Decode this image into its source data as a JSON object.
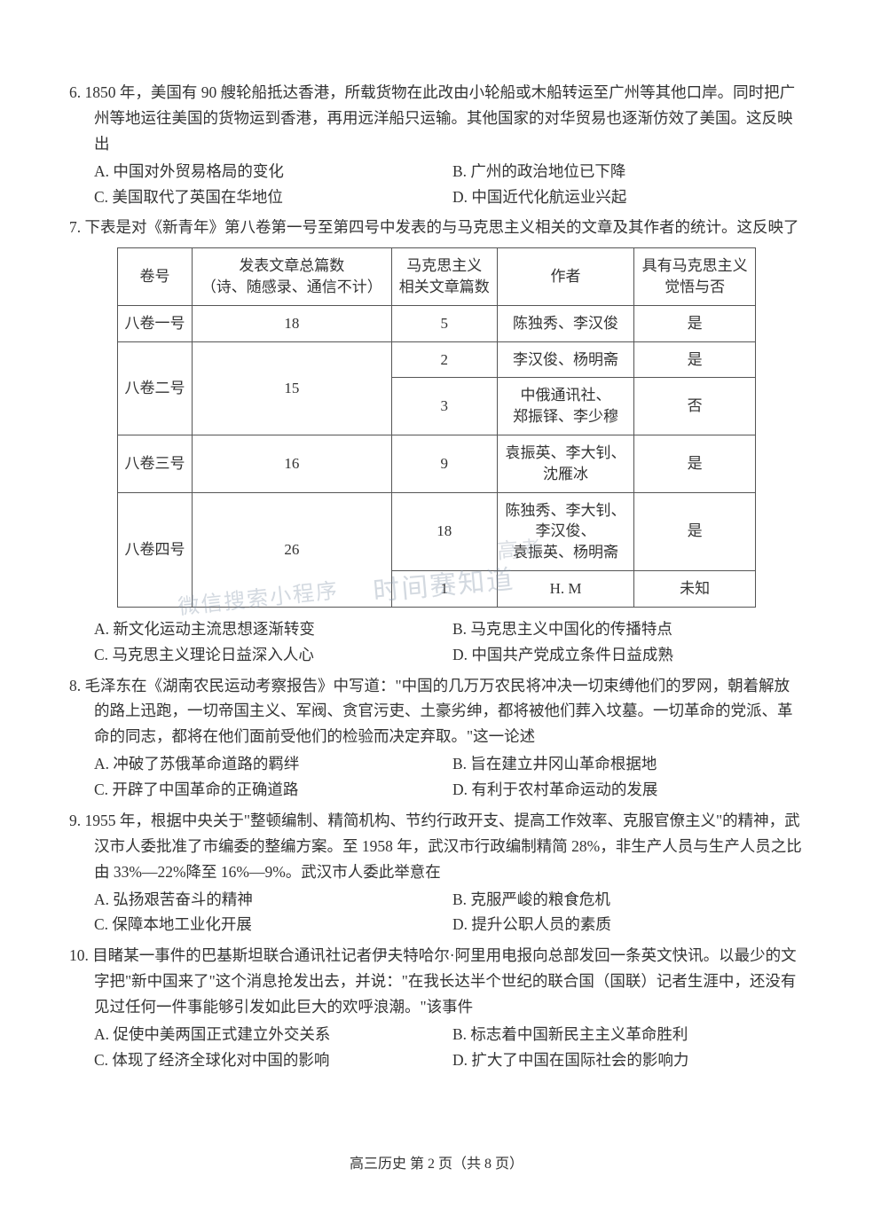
{
  "q6": {
    "stem": "6. 1850 年，美国有 90 艘轮船抵达香港，所载货物在此改由小轮船或木船转运至广州等其他口岸。同时把广州等地运往美国的货物运到香港，再用远洋船只运输。其他国家的对华贸易也逐渐仿效了美国。这反映出",
    "a": "A. 中国对外贸易格局的变化",
    "b": "B. 广州的政治地位已下降",
    "c": "C. 美国取代了英国在华地位",
    "d": "D. 中国近代化航运业兴起"
  },
  "q7": {
    "stem": "7. 下表是对《新青年》第八卷第一号至第四号中发表的与马克思主义相关的文章及其作者的统计。这反映了",
    "a": "A. 新文化运动主流思想逐渐转变",
    "b": "B. 马克思主义中国化的传播特点",
    "c": "C. 马克思主义理论日益深入人心",
    "d": "D. 中国共产党成立条件日益成熟",
    "table": {
      "headers": [
        "卷号",
        "发表文章总篇数\n（诗、随感录、通信不计）",
        "马克思主义\n相关文章篇数",
        "作者",
        "具有马克思主义\n觉悟与否"
      ],
      "r1": {
        "vol": "八卷一号",
        "total": "18",
        "mx": "5",
        "author": "陈独秀、李汉俊",
        "has": "是"
      },
      "r2a": {
        "vol": "八卷二号",
        "total": "15",
        "mx": "2",
        "author": "李汉俊、杨明斋",
        "has": "是"
      },
      "r2b": {
        "mx": "3",
        "author": "中俄通讯社、\n郑振铎、李少穆",
        "has": "否"
      },
      "r3": {
        "vol": "八卷三号",
        "total": "16",
        "mx": "9",
        "author": "袁振英、李大钊、\n沈雁冰",
        "has": "是"
      },
      "r4a": {
        "vol": "八卷四号",
        "total": "26",
        "mx": "18",
        "author": "陈独秀、李大钊、\n李汉俊、\n袁振英、杨明斋",
        "has": "是"
      },
      "r4b": {
        "mx": "1",
        "author": "H. M",
        "has": "未知"
      }
    }
  },
  "q8": {
    "stem": "8. 毛泽东在《湖南农民运动考察报告》中写道：\"中国的几万万农民将冲决一切束缚他们的罗网，朝着解放的路上迅跑，一切帝国主义、军阀、贪官污吏、土豪劣绅，都将被他们葬入坟墓。一切革命的党派、革命的同志，都将在他们面前受他们的检验而决定弃取。\"这一论述",
    "a": "A. 冲破了苏俄革命道路的羁绊",
    "b": "B. 旨在建立井冈山革命根据地",
    "c": "C. 开辟了中国革命的正确道路",
    "d": "D. 有利于农村革命运动的发展"
  },
  "q9": {
    "stem": "9. 1955 年，根据中央关于\"整顿编制、精简机构、节约行政开支、提高工作效率、克服官僚主义\"的精神，武汉市人委批准了市编委的整编方案。至 1958 年，武汉市行政编制精简 28%，非生产人员与生产人员之比由 33%—22%降至 16%—9%。武汉市人委此举意在",
    "a": "A. 弘扬艰苦奋斗的精神",
    "b": "B. 克服严峻的粮食危机",
    "c": "C. 保障本地工业化开展",
    "d": "D. 提升公职人员的素质"
  },
  "q10": {
    "stem": "10. 目睹某一事件的巴基斯坦联合通讯社记者伊夫特哈尔·阿里用电报向总部发回一条英文快讯。以最少的文字把\"新中国来了\"这个消息抢发出去，并说：\"在我长达半个世纪的联合国（国联）记者生涯中，还没有见过任何一件事能够引发如此巨大的欢呼浪潮。\"该事件",
    "a": "A. 促使中美两国正式建立外交关系",
    "b": "B. 标志着中国新民主主义革命胜利",
    "c": "C. 体现了经济全球化对中国的影响",
    "d": "D. 扩大了中国在国际社会的影响力"
  },
  "footer": "高三历史 第 2 页（共 8 页）",
  "watermark": {
    "wm1": "时间赛知道",
    "wm2": "微信搜索小程序",
    "wm3": "高考"
  }
}
